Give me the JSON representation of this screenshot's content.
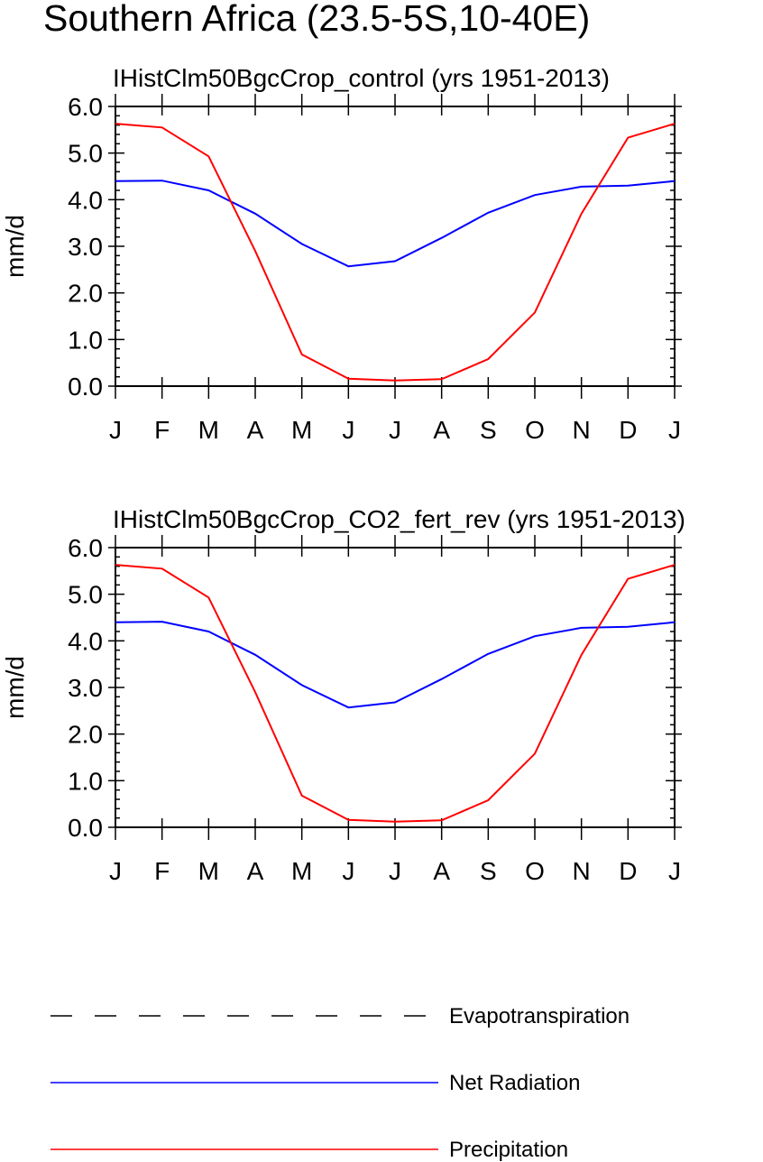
{
  "title": "Southern Africa (23.5-5S,10-40E)",
  "chart_data": [
    {
      "type": "line",
      "title": "IHistClm50BgcCrop_control (yrs 1951-2013)",
      "ylabel": "mm/d",
      "xlabel": "",
      "ylim": [
        0,
        6
      ],
      "yticks": [
        "0.0",
        "1.0",
        "2.0",
        "3.0",
        "4.0",
        "5.0",
        "6.0"
      ],
      "categories": [
        "J",
        "F",
        "M",
        "A",
        "M",
        "J",
        "J",
        "A",
        "S",
        "O",
        "N",
        "D",
        "J"
      ],
      "series": [
        {
          "name": "Net Radiation",
          "color": "#0000ff",
          "values": [
            4.4,
            4.41,
            4.2,
            3.7,
            3.05,
            2.57,
            2.68,
            3.18,
            3.72,
            4.1,
            4.28,
            4.3,
            4.4
          ]
        },
        {
          "name": "Precipitation",
          "color": "#ff0000",
          "values": [
            5.63,
            5.55,
            4.93,
            2.9,
            0.68,
            0.16,
            0.12,
            0.15,
            0.58,
            1.58,
            3.7,
            5.33,
            5.63
          ]
        }
      ]
    },
    {
      "type": "line",
      "title": "IHistClm50BgcCrop_CO2_fert_rev (yrs 1951-2013)",
      "ylabel": "mm/d",
      "xlabel": "",
      "ylim": [
        0,
        6
      ],
      "yticks": [
        "0.0",
        "1.0",
        "2.0",
        "3.0",
        "4.0",
        "5.0",
        "6.0"
      ],
      "categories": [
        "J",
        "F",
        "M",
        "A",
        "M",
        "J",
        "J",
        "A",
        "S",
        "O",
        "N",
        "D",
        "J"
      ],
      "series": [
        {
          "name": "Net Radiation",
          "color": "#0000ff",
          "values": [
            4.4,
            4.41,
            4.2,
            3.7,
            3.05,
            2.57,
            2.68,
            3.18,
            3.72,
            4.1,
            4.28,
            4.3,
            4.4
          ]
        },
        {
          "name": "Precipitation",
          "color": "#ff0000",
          "values": [
            5.63,
            5.55,
            4.93,
            2.9,
            0.68,
            0.16,
            0.12,
            0.15,
            0.58,
            1.58,
            3.7,
            5.33,
            5.63
          ]
        }
      ]
    }
  ],
  "legend": {
    "placement": "bottom",
    "items": [
      {
        "label": "Evapotranspiration",
        "color": "#000000",
        "style": "dashed"
      },
      {
        "label": "Net Radiation",
        "color": "#0000ff",
        "style": "solid"
      },
      {
        "label": "Precipitation",
        "color": "#ff0000",
        "style": "solid"
      }
    ]
  }
}
